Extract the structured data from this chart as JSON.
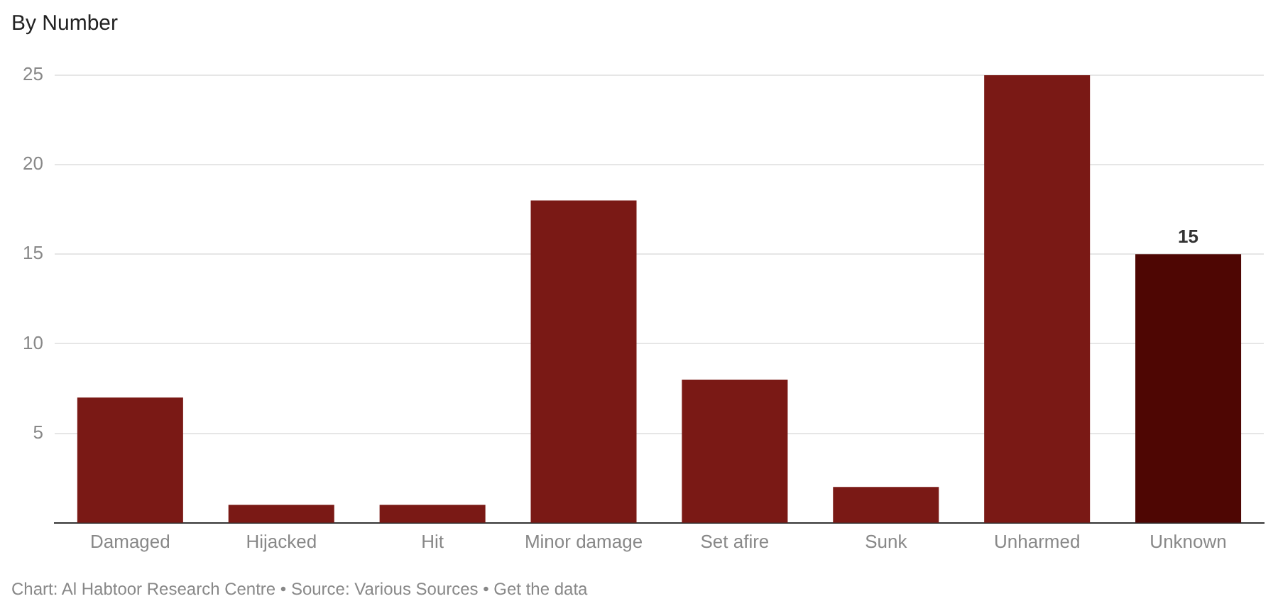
{
  "chart_data": {
    "type": "bar",
    "title": "By Number",
    "categories": [
      "Damaged",
      "Hijacked",
      "Hit",
      "Minor damage",
      "Set afire",
      "Sunk",
      "Unharmed",
      "Unknown"
    ],
    "values": [
      7,
      1,
      1,
      18,
      8,
      2,
      25,
      15
    ],
    "colors": [
      "#7a1915",
      "#7a1915",
      "#7a1915",
      "#7a1915",
      "#7a1915",
      "#7a1915",
      "#7a1915",
      "#4e0603"
    ],
    "value_labels": [
      null,
      null,
      null,
      null,
      null,
      null,
      null,
      "15"
    ],
    "ylim": [
      0,
      25
    ],
    "yticks": [
      5,
      10,
      15,
      20,
      25
    ],
    "grid": "y",
    "annotations": [
      "Chart: Al Habtoor Research Centre • Source: Various Sources • Get the data"
    ]
  }
}
